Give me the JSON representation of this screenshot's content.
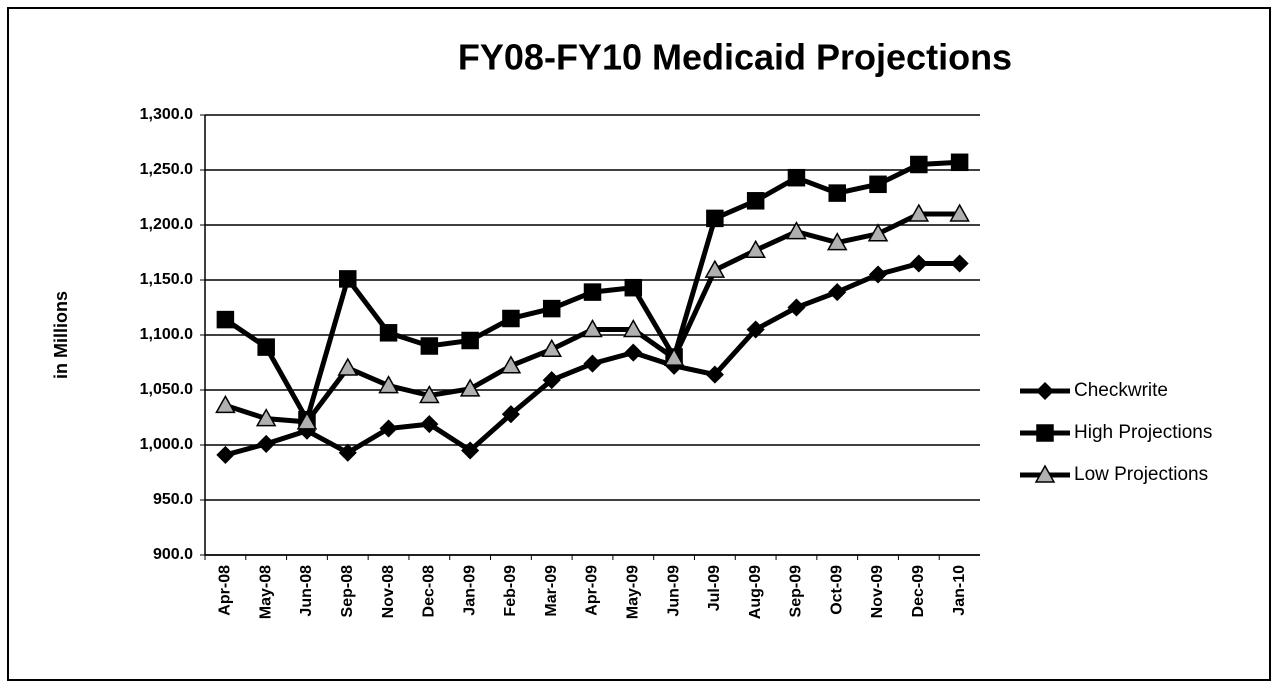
{
  "chart_data": {
    "type": "line",
    "title": "FY08-FY10 Medicaid Projections",
    "y_label": "in Millions",
    "categories": [
      "Apr-08",
      "May-08",
      "Jun-08",
      "Sep-08",
      "Nov-08",
      "Dec-08",
      "Jan-09",
      "Feb-09",
      "Mar-09",
      "Apr-09",
      "May-09",
      "Jun-09",
      "Jul-09",
      "Aug-09",
      "Sep-09",
      "Oct-09",
      "Nov-09",
      "Dec-09",
      "Jan-10"
    ],
    "series": [
      {
        "name": "Checkwrite",
        "color": "#000000",
        "marker": "diamond",
        "marker_fill": "#000000",
        "values": [
          991,
          1001,
          1013,
          993,
          1015,
          1019,
          995,
          1028,
          1059,
          1074,
          1084,
          1072,
          1064,
          1105,
          1125,
          1139,
          1155,
          1165,
          1165
        ]
      },
      {
        "name": "High Projections",
        "color": "#000000",
        "marker": "square",
        "marker_fill": "#000000",
        "values": [
          1114,
          1089,
          1023,
          1151,
          1102,
          1090,
          1095,
          1115,
          1124,
          1139,
          1143,
          1080,
          1206,
          1222,
          1243,
          1229,
          1237,
          1255,
          1257
        ]
      },
      {
        "name": "Low Projections",
        "color": "#000000",
        "marker": "triangle",
        "marker_fill": "#b0b0b0",
        "values": [
          1036,
          1024,
          1021,
          1070,
          1054,
          1045,
          1051,
          1072,
          1087,
          1105,
          1105,
          1079,
          1159,
          1177,
          1194,
          1184,
          1192,
          1210,
          1210
        ]
      }
    ],
    "ylim": [
      900,
      1300
    ],
    "yticks": [
      {
        "value": 900,
        "label": "900.0"
      },
      {
        "value": 950,
        "label": "950.0"
      },
      {
        "value": 1000,
        "label": "1,000.0"
      },
      {
        "value": 1050,
        "label": "1,050.0"
      },
      {
        "value": 1100,
        "label": "1,100.0"
      },
      {
        "value": 1150,
        "label": "1,150.0"
      },
      {
        "value": 1200,
        "label": "1,200.0"
      },
      {
        "value": 1250,
        "label": "1,250.0"
      },
      {
        "value": 1300,
        "label": "1,300.0"
      }
    ],
    "grid": true,
    "legend": "right"
  }
}
